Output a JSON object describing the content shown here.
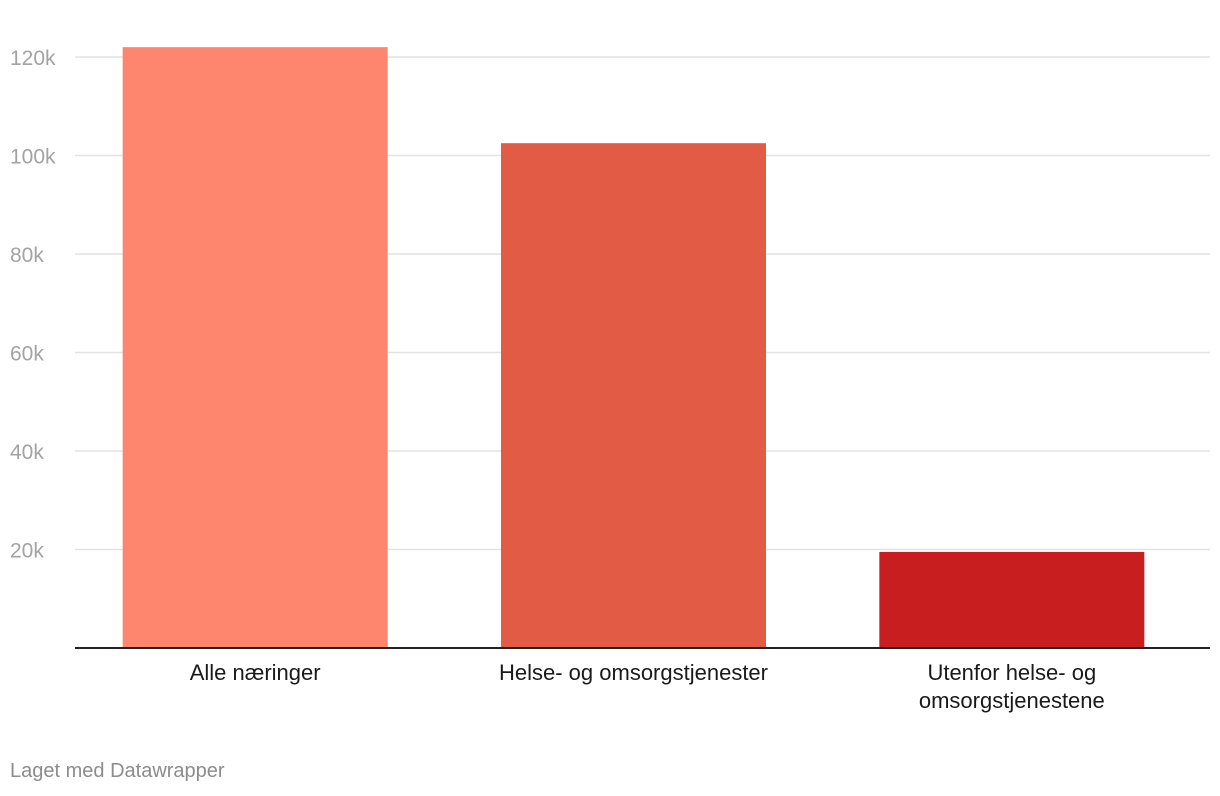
{
  "chart_data": {
    "type": "bar",
    "title": "",
    "xlabel": "",
    "ylabel": "",
    "categories": [
      [
        "Alle næringer"
      ],
      [
        "Helse- og omsorgstjenester"
      ],
      [
        "Utenfor helse- og",
        "omsorgstjenestene"
      ]
    ],
    "values": [
      122000,
      102500,
      19500
    ],
    "colors": [
      "#fe866f",
      "#e15b45",
      "#c91e1f"
    ],
    "ylim": [
      0,
      120000
    ],
    "yticks": [
      20000,
      40000,
      60000,
      80000,
      100000,
      120000
    ],
    "ytick_labels": [
      "20k",
      "40k",
      "60k",
      "80k",
      "100k",
      "120k"
    ],
    "grid": true,
    "legend": "none"
  },
  "footer": {
    "credit": "Laget med Datawrapper"
  }
}
